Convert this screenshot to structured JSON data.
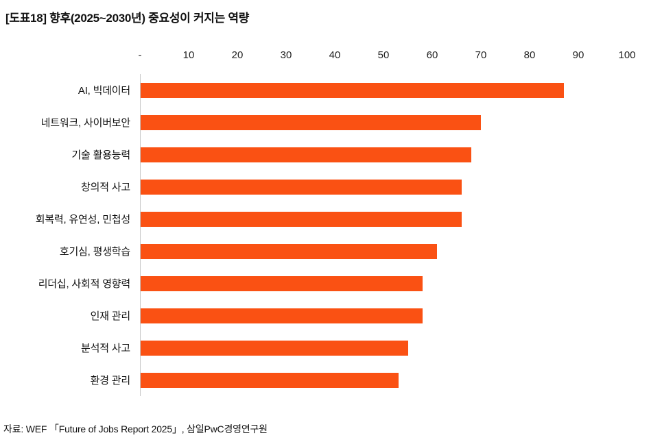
{
  "title": "[도표18] 향후(2025~2030년) 중요성이 커지는 역량",
  "source": "자료: WEF 「Future of Jobs Report 2025」, 삼일PwC경영연구원",
  "colors": {
    "bar": "#fa5113",
    "axis_line": "#c8c8c8",
    "text": "#111111"
  },
  "chart_data": {
    "type": "bar",
    "orientation": "horizontal",
    "title": "[도표18] 향후(2025~2030년) 중요성이 커지는 역량",
    "categories": [
      "AI, 빅데이터",
      "네트워크, 사이버보안",
      "기술 활용능력",
      "창의적 사고",
      "회복력, 유연성, 민첩성",
      "호기심, 평생학습",
      "리더십, 사회적 영향력",
      "인재 관리",
      "분석적 사고",
      "환경 관리"
    ],
    "values": [
      87,
      70,
      68,
      66,
      66,
      61,
      58,
      58,
      55,
      53
    ],
    "xlabel": "",
    "ylabel": "",
    "xlim": [
      0,
      100
    ],
    "x_ticks": [
      "-",
      "10",
      "20",
      "30",
      "40",
      "50",
      "60",
      "70",
      "80",
      "90",
      "100"
    ],
    "x_tick_values": [
      0,
      10,
      20,
      30,
      40,
      50,
      60,
      70,
      80,
      90,
      100
    ],
    "grid": false,
    "legend": false,
    "source": "자료: WEF 「Future of Jobs Report 2025」, 삼일PwC경영연구원"
  }
}
